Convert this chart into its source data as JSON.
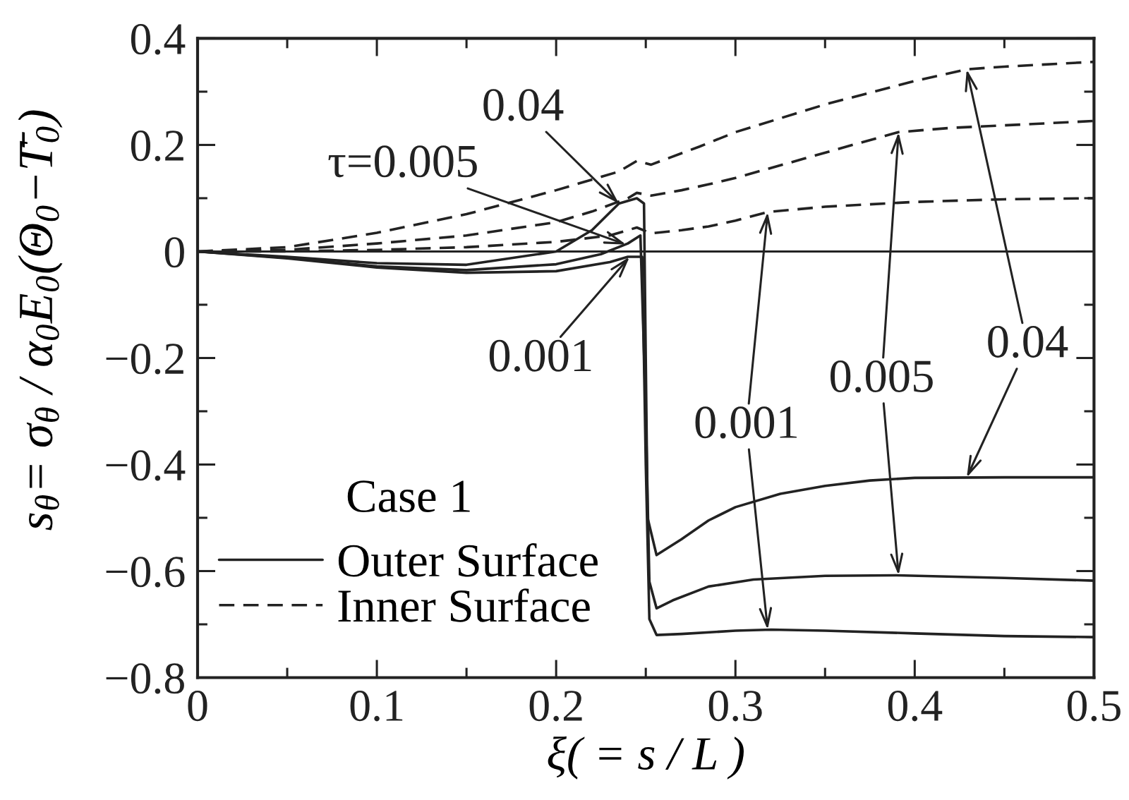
{
  "chart_data": {
    "type": "line",
    "xlabel": "ξ( = s / L )",
    "ylabel": "s$_{θ}$= σ$_{θ}$ / α$_{0}$E$_{0}$(Θ$_{0}$−T̄$_{0}$)",
    "xlim": [
      0,
      0.5
    ],
    "xticks": [
      0,
      {
        "value": 0.05,
        "label": null
      },
      0.1,
      {
        "value": 0.15,
        "label": null
      },
      0.2,
      {
        "value": 0.25,
        "label": null
      },
      0.3,
      {
        "value": 0.35,
        "label": null
      },
      0.4,
      {
        "value": 0.45,
        "label": null
      },
      0.5
    ],
    "ylim": [
      -0.8,
      0.4
    ],
    "yticks": [
      {
        "value": -0.8,
        "label": "−0.8"
      },
      {
        "value": -0.7,
        "label": null
      },
      {
        "value": -0.6,
        "label": "−0.6"
      },
      {
        "value": -0.5,
        "label": null
      },
      {
        "value": -0.4,
        "label": "−0.4"
      },
      {
        "value": -0.3,
        "label": null
      },
      {
        "value": -0.2,
        "label": "−0.2"
      },
      {
        "value": -0.1,
        "label": null
      },
      0,
      {
        "value": 0.1,
        "label": null
      },
      0.2,
      {
        "value": 0.3,
        "label": null
      },
      0.4
    ],
    "legend": "bottom left",
    "legend_title": "Case 1",
    "ref_lines": [
      {
        "axis": "y",
        "value": 0,
        "color": "#222222"
      }
    ],
    "series": [
      {
        "name": "Outer Surface",
        "color": "#222222",
        "line_style": "solid",
        "x": [
          0,
          0.05,
          0.1,
          0.15,
          0.2,
          0.23,
          0.24,
          0.248,
          0.25,
          0.252,
          0.256,
          0.27,
          0.3,
          0.32,
          0.35,
          0.4,
          0.45,
          0.5
        ],
        "values": [
          0,
          -0.013,
          -0.03,
          -0.04,
          -0.037,
          -0.02,
          -0.01,
          -0.01,
          -0.4,
          -0.69,
          -0.72,
          -0.718,
          -0.712,
          -0.71,
          -0.712,
          -0.717,
          -0.722,
          -0.724
        ]
      },
      {
        "color": "#222222",
        "line_style": "solid",
        "x": [
          0,
          0.05,
          0.1,
          0.15,
          0.2,
          0.225,
          0.24,
          0.247,
          0.25,
          0.252,
          0.256,
          0.265,
          0.285,
          0.31,
          0.35,
          0.39,
          0.45,
          0.5
        ],
        "values": [
          0,
          -0.012,
          -0.028,
          -0.035,
          -0.024,
          -0.005,
          0.015,
          0.03,
          -0.3,
          -0.62,
          -0.67,
          -0.655,
          -0.629,
          -0.616,
          -0.609,
          -0.608,
          -0.613,
          -0.618
        ]
      },
      {
        "color": "#222222",
        "line_style": "solid",
        "x": [
          0,
          0.05,
          0.1,
          0.15,
          0.2,
          0.22,
          0.235,
          0.245,
          0.249,
          0.251,
          0.256,
          0.27,
          0.285,
          0.3,
          0.325,
          0.35,
          0.375,
          0.4,
          0.45,
          0.5
        ],
        "values": [
          0,
          -0.01,
          -0.022,
          -0.025,
          0.0,
          0.04,
          0.09,
          0.1,
          0.09,
          -0.5,
          -0.57,
          -0.54,
          -0.505,
          -0.48,
          -0.455,
          -0.44,
          -0.43,
          -0.425,
          -0.424,
          -0.424
        ]
      },
      {
        "name": "Inner Surface",
        "color": "#222222",
        "line_style": "dashed",
        "x": [
          0,
          0.05,
          0.1,
          0.15,
          0.2,
          0.23,
          0.245,
          0.253,
          0.27,
          0.285,
          0.3,
          0.318,
          0.35,
          0.4,
          0.45,
          0.5
        ],
        "values": [
          0,
          0.0,
          0.003,
          0.008,
          0.018,
          0.03,
          0.045,
          0.034,
          0.04,
          0.047,
          0.058,
          0.074,
          0.084,
          0.093,
          0.098,
          0.1
        ]
      },
      {
        "color": "#222222",
        "line_style": "dashed",
        "x": [
          0,
          0.05,
          0.1,
          0.15,
          0.2,
          0.22,
          0.24,
          0.245,
          0.253,
          0.27,
          0.285,
          0.3,
          0.338,
          0.36,
          0.391,
          0.42,
          0.47,
          0.5
        ],
        "values": [
          0,
          0.003,
          0.015,
          0.03,
          0.055,
          0.075,
          0.1,
          0.11,
          0.105,
          0.115,
          0.126,
          0.138,
          0.174,
          0.195,
          0.224,
          0.232,
          0.24,
          0.245
        ]
      },
      {
        "color": "#222222",
        "line_style": "dashed",
        "x": [
          0,
          0.05,
          0.1,
          0.15,
          0.2,
          0.235,
          0.245,
          0.253,
          0.28,
          0.3,
          0.35,
          0.4,
          0.429,
          0.45,
          0.5
        ],
        "values": [
          0,
          0.008,
          0.035,
          0.07,
          0.115,
          0.15,
          0.17,
          0.163,
          0.197,
          0.224,
          0.276,
          0.32,
          0.342,
          0.347,
          0.356
        ]
      }
    ],
    "annotations": [
      {
        "text": "τ=0.005",
        "x": 0.239,
        "y": 0.013
      },
      {
        "text": "0.04",
        "x": 0.235,
        "y": 0.09
      },
      {
        "text": "0.001",
        "x": 0.241,
        "y": -0.01
      },
      {
        "text": "0.001",
        "x": 0.318,
        "y": 0.074
      },
      {
        "text": "0.005",
        "x": 0.391,
        "y": 0.224
      },
      {
        "text": "0.04",
        "x": 0.429,
        "y": 0.342
      }
    ]
  }
}
